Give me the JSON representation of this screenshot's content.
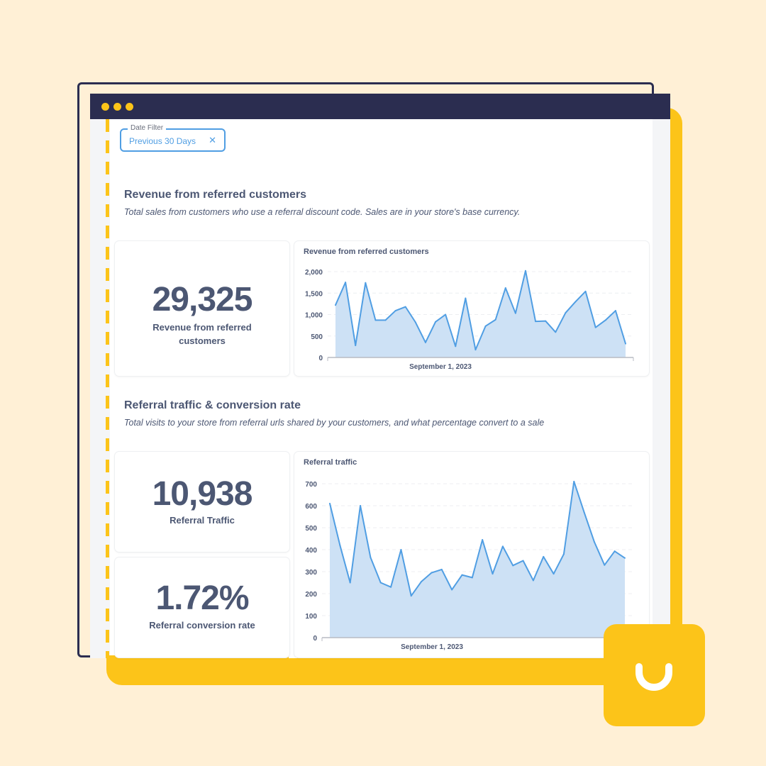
{
  "colors": {
    "background": "#fff0d6",
    "accent_yellow": "#fcc419",
    "navy": "#2b2d50",
    "chart_line": "#509ee3",
    "chart_fill": "#cde1f5"
  },
  "filter": {
    "label": "Date Filter",
    "value": "Previous 30 Days",
    "clear_icon": "close-icon"
  },
  "section1": {
    "title": "Revenue from referred customers",
    "subtitle": "Total sales from customers who use a referral discount code. Sales are in your store's base currency.",
    "stat": {
      "value": "29,325",
      "label": "Revenue from referred customers"
    }
  },
  "section2": {
    "title": "Referral traffic & conversion rate",
    "subtitle": "Total visits to your store from referral urls shared by your customers, and what percentage convert to a sale",
    "stat_traffic": {
      "value": "10,938",
      "label": "Referral Traffic"
    },
    "stat_conversion": {
      "value": "1.72%",
      "label": "Referral conversion rate"
    }
  },
  "chart_data": [
    {
      "type": "area",
      "title": "Revenue from referred customers",
      "xlabel": "September 1, 2023",
      "ylabel": "",
      "ylim": [
        0,
        2000
      ],
      "yticks": [
        "0",
        "500",
        "1,000",
        "1,500",
        "2,000"
      ],
      "grid": true,
      "values": [
        1220,
        1750,
        280,
        1740,
        870,
        870,
        1090,
        1180,
        820,
        350,
        830,
        1000,
        260,
        1380,
        180,
        730,
        880,
        1620,
        1030,
        2020,
        840,
        850,
        590,
        1040,
        1300,
        1540,
        700,
        870,
        1090,
        320
      ]
    },
    {
      "type": "area",
      "title": "Referral traffic",
      "xlabel": "September 1, 2023",
      "ylabel": "",
      "ylim": [
        0,
        700
      ],
      "yticks": [
        "0",
        "100",
        "200",
        "300",
        "400",
        "500",
        "600",
        "700"
      ],
      "grid": true,
      "values": [
        610,
        420,
        250,
        600,
        365,
        250,
        230,
        400,
        190,
        255,
        295,
        310,
        218,
        285,
        273,
        445,
        290,
        415,
        328,
        350,
        260,
        368,
        290,
        380,
        710,
        570,
        435,
        330,
        393,
        362
      ]
    }
  ]
}
